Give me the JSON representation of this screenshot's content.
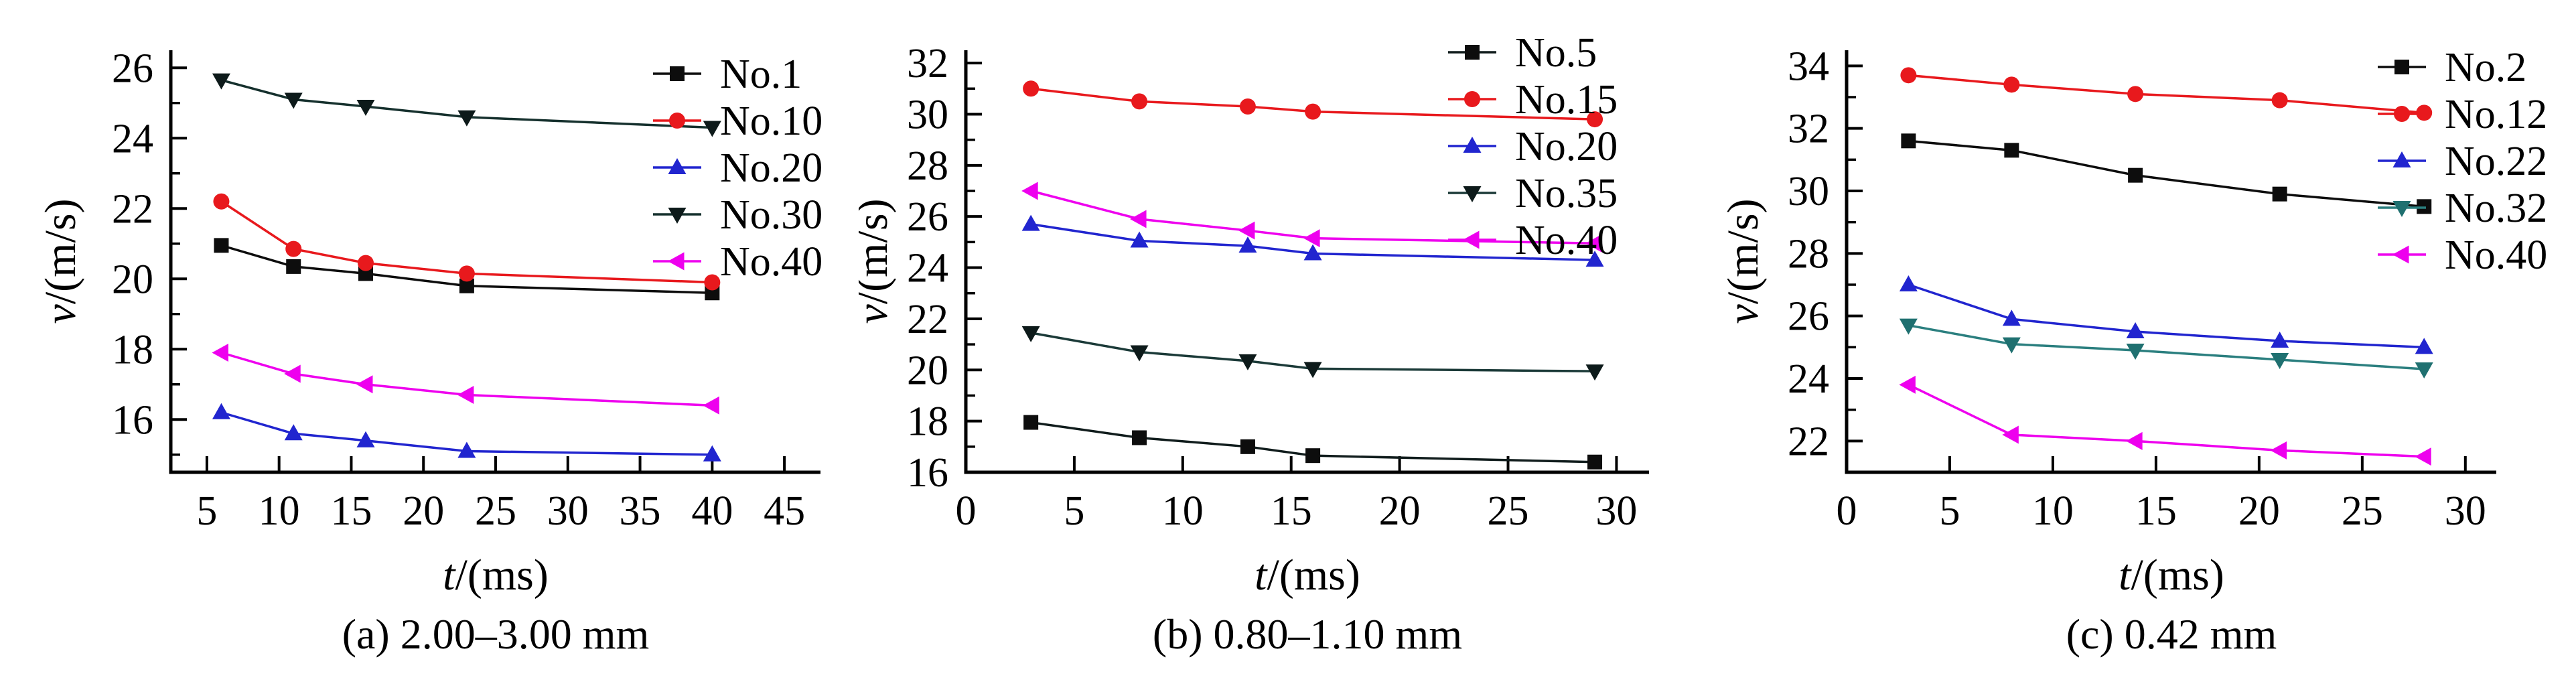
{
  "figure": {
    "background": "#ffffff",
    "axis_color": "#000000",
    "series_colors": {
      "black": "#0d0d0d",
      "red": "#e8191d",
      "blue": "#2125cf",
      "dark_teal_black": "#15302d",
      "teal": "#2b7f7f",
      "magenta": "#ee00ee"
    }
  },
  "chart_data": [
    {
      "type": "line",
      "title": "(a) 2.00–3.00 mm",
      "xlabel": "t/(ms)",
      "ylabel": "v/(m/s)",
      "x_range": [
        2.5,
        47.5
      ],
      "y_range": [
        14.5,
        26.5
      ],
      "x_ticks": [
        5,
        10,
        15,
        20,
        25,
        30,
        35,
        40,
        45
      ],
      "y_ticks": [
        16,
        18,
        20,
        22,
        24,
        26
      ],
      "y_minor_ticks": [
        15,
        17,
        19,
        21,
        23,
        25
      ],
      "grid": false,
      "legend_position": "upper-right",
      "x": [
        6,
        11,
        16,
        23,
        40
      ],
      "series": [
        {
          "name": "No.1",
          "marker": "square-icon",
          "color": "#0d0d0d",
          "line": "#0d0d0d",
          "values": [
            20.95,
            20.35,
            20.15,
            19.8,
            19.6
          ]
        },
        {
          "name": "No.10",
          "marker": "circle-icon",
          "color": "#e8191d",
          "line": "#e8191d",
          "values": [
            22.2,
            20.85,
            20.45,
            20.15,
            19.9
          ]
        },
        {
          "name": "No.20",
          "marker": "triangle-up-icon",
          "color": "#2125cf",
          "line": "#2125cf",
          "values": [
            16.2,
            15.6,
            15.4,
            15.1,
            15.0
          ]
        },
        {
          "name": "No.30",
          "marker": "triangle-down-icon",
          "color": "#0d1a1a",
          "line": "#15302d",
          "values": [
            25.65,
            25.1,
            24.9,
            24.6,
            24.3
          ]
        },
        {
          "name": "No.40",
          "marker": "triangle-left-icon",
          "color": "#ee00ee",
          "line": "#ee00ee",
          "values": [
            17.9,
            17.3,
            17.0,
            16.7,
            16.4
          ]
        }
      ]
    },
    {
      "type": "line",
      "title": "(b) 0.80–1.10 mm",
      "xlabel": "t/(ms)",
      "ylabel": "v/(m/s)",
      "x_range": [
        0,
        31.5
      ],
      "y_range": [
        16,
        32.5
      ],
      "x_ticks": [
        0,
        5,
        10,
        15,
        20,
        25,
        30
      ],
      "y_ticks": [
        16,
        18,
        20,
        22,
        24,
        26,
        28,
        30,
        32
      ],
      "y_minor_ticks": [
        17,
        19,
        21,
        23,
        25,
        27,
        29,
        31
      ],
      "grid": false,
      "legend_position": "upper-right",
      "x": [
        3,
        8,
        13,
        16,
        29
      ],
      "series": [
        {
          "name": "No.5",
          "marker": "square-icon",
          "color": "#0d0d0d",
          "line": "#101c1c",
          "values": [
            17.95,
            17.35,
            17.0,
            16.65,
            16.4
          ]
        },
        {
          "name": "No.15",
          "marker": "circle-icon",
          "color": "#e8191d",
          "line": "#e8191d",
          "values": [
            31.0,
            30.5,
            30.3,
            30.1,
            29.8
          ]
        },
        {
          "name": "No.20",
          "marker": "triangle-up-icon",
          "color": "#2125cf",
          "line": "#2125cf",
          "values": [
            25.7,
            25.05,
            24.85,
            24.55,
            24.3
          ]
        },
        {
          "name": "No.35",
          "marker": "triangle-down-icon",
          "color": "#0d1a1a",
          "line": "#1b3a38",
          "values": [
            21.45,
            20.7,
            20.35,
            20.05,
            19.95
          ]
        },
        {
          "name": "No.40",
          "marker": "triangle-left-icon",
          "color": "#ee00ee",
          "line": "#ee00ee",
          "values": [
            27.0,
            25.9,
            25.45,
            25.15,
            24.95
          ]
        }
      ]
    },
    {
      "type": "line",
      "title": "(c) 0.42 mm",
      "xlabel": "t/(ms)",
      "ylabel": "v/(m/s)",
      "x_range": [
        0,
        31.5
      ],
      "y_range": [
        21,
        34.5
      ],
      "x_ticks": [
        0,
        5,
        10,
        15,
        20,
        25,
        30
      ],
      "y_ticks": [
        22,
        24,
        26,
        28,
        30,
        32,
        34
      ],
      "y_minor_ticks": [
        23,
        25,
        27,
        29,
        31,
        33
      ],
      "grid": false,
      "legend_position": "upper-right",
      "x": [
        3,
        8,
        14,
        21,
        28
      ],
      "series": [
        {
          "name": "No.2",
          "marker": "square-icon",
          "color": "#0d0d0d",
          "line": "#0d0d0d",
          "values": [
            31.6,
            31.3,
            30.5,
            29.9,
            29.5
          ]
        },
        {
          "name": "No.12",
          "marker": "circle-icon",
          "color": "#e8191d",
          "line": "#e8191d",
          "values": [
            33.7,
            33.4,
            33.1,
            32.9,
            32.5
          ]
        },
        {
          "name": "No.22",
          "marker": "triangle-up-icon",
          "color": "#2125cf",
          "line": "#2125cf",
          "values": [
            27.0,
            25.9,
            25.5,
            25.2,
            25.0
          ]
        },
        {
          "name": "No.32",
          "marker": "triangle-down-icon",
          "color": "#1f7070",
          "line": "#2b7f7f",
          "values": [
            25.7,
            25.1,
            24.9,
            24.6,
            24.3
          ]
        },
        {
          "name": "No.40",
          "marker": "triangle-left-icon",
          "color": "#ee00ee",
          "line": "#ee00ee",
          "values": [
            23.8,
            22.2,
            22.0,
            21.7,
            21.5
          ]
        }
      ]
    }
  ]
}
